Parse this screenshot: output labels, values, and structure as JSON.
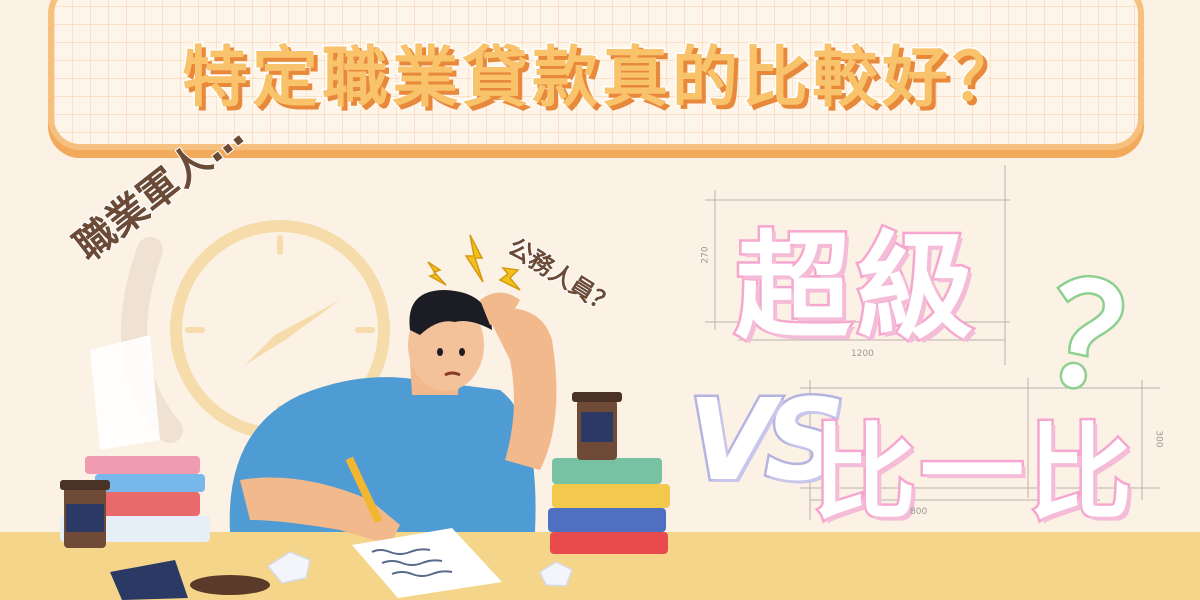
{
  "banner": {
    "title": "特定職業貸款真的比較好？"
  },
  "speech": {
    "left": "職業軍人…",
    "right": "公務人員？"
  },
  "comparison": {
    "word_top": "超級",
    "vs": "VS",
    "word_bottom": "比一比",
    "question_mark": "？"
  },
  "dimensions": {
    "top_height": "270",
    "top_width": "1200",
    "bottom_height": "300",
    "bottom_width": "800"
  },
  "colors": {
    "banner_fill": "#f9c36b",
    "banner_shadow": "#e7883a",
    "pink_outline": "#f5a7cf",
    "vs_outline": "#b5b3e0",
    "question_green": "#8ed08f",
    "shirt_blue": "#4f9bd4",
    "table_yellow": "#f5d58a"
  }
}
